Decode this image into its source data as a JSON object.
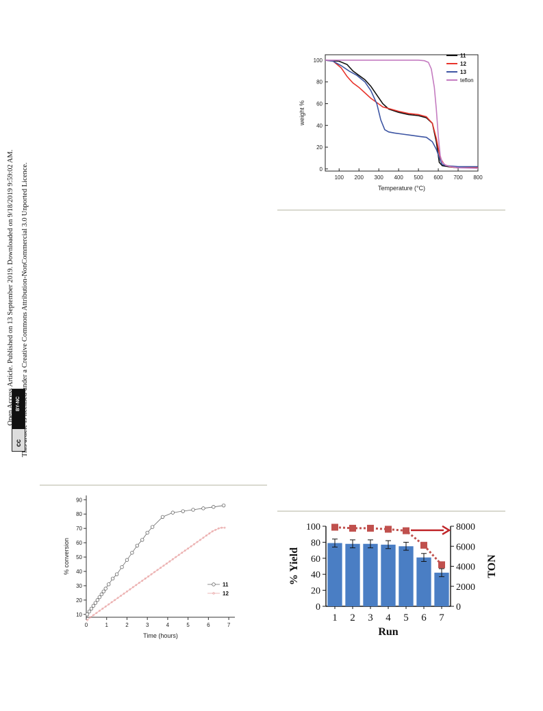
{
  "sidebar": {
    "line1": "Open Access Article. Published on 13 September 2019. Downloaded on 9/18/2019 9:59:02 AM.",
    "line2": "This article is licensed under a Creative Commons Attribution-NonCommercial 3.0 Unported Licence.",
    "cc_logo": "cc",
    "cc_label": "BY-NC"
  },
  "chart_data": [
    {
      "type": "line",
      "title": "",
      "xlabel": "Temperature (°C)",
      "ylabel": "weight  %",
      "xlim": [
        30,
        800
      ],
      "ylim": [
        -2,
        105
      ],
      "xticks": [
        100,
        200,
        300,
        400,
        500,
        600,
        700,
        800
      ],
      "yticks": [
        0,
        20,
        40,
        60,
        80,
        100
      ],
      "legend_position": "top-right",
      "grid": false,
      "series": [
        {
          "name": "11",
          "color": "#111111",
          "x": [
            30,
            100,
            140,
            170,
            200,
            230,
            260,
            290,
            320,
            350,
            400,
            450,
            500,
            540,
            570,
            590,
            605,
            620,
            650,
            700,
            800
          ],
          "y": [
            100,
            99,
            96,
            90,
            86,
            82,
            76,
            68,
            60,
            55,
            52,
            50,
            49,
            47,
            42,
            25,
            6,
            3,
            2,
            1,
            1
          ]
        },
        {
          "name": "12",
          "color": "#e8332b",
          "x": [
            30,
            70,
            110,
            140,
            170,
            200,
            230,
            260,
            290,
            320,
            360,
            400,
            450,
            500,
            540,
            570,
            590,
            610,
            630,
            660,
            700,
            800
          ],
          "y": [
            100,
            99,
            93,
            85,
            79,
            75,
            70,
            65,
            61,
            57,
            55,
            53,
            51,
            50,
            48,
            42,
            28,
            10,
            4,
            2,
            1,
            1
          ]
        },
        {
          "name": "13",
          "color": "#3d55a3",
          "x": [
            30,
            70,
            110,
            150,
            190,
            230,
            260,
            290,
            310,
            330,
            350,
            380,
            420,
            460,
            500,
            540,
            570,
            590,
            610,
            620,
            640,
            700,
            800
          ],
          "y": [
            100,
            99,
            95,
            90,
            86,
            80,
            72,
            60,
            45,
            36,
            34,
            33,
            32,
            31,
            30,
            29,
            25,
            18,
            8,
            4,
            3,
            2,
            2
          ]
        },
        {
          "name": "teflon",
          "color": "#c47bc0",
          "x": [
            30,
            200,
            400,
            500,
            530,
            550,
            565,
            580,
            590,
            600,
            610,
            620,
            640,
            700,
            800
          ],
          "y": [
            100,
            100,
            100,
            100,
            99.5,
            98,
            92,
            75,
            55,
            30,
            12,
            6,
            3,
            1,
            0.5
          ]
        }
      ]
    },
    {
      "type": "scatter",
      "title": "",
      "xlabel": "Time (hours)",
      "ylabel": "% conversion",
      "xlim": [
        0,
        7.3
      ],
      "ylim": [
        8,
        93
      ],
      "xticks": [
        0,
        1,
        2,
        3,
        4,
        5,
        6,
        7
      ],
      "yticks": [
        10,
        20,
        30,
        40,
        50,
        60,
        70,
        80,
        90
      ],
      "legend_position": "bottom-right",
      "grid": false,
      "series": [
        {
          "name": "11",
          "color": "#666666",
          "marker": "circle",
          "x": [
            0.05,
            0.15,
            0.25,
            0.35,
            0.45,
            0.55,
            0.65,
            0.75,
            0.85,
            0.95,
            1.1,
            1.3,
            1.5,
            1.75,
            2.0,
            2.25,
            2.5,
            2.75,
            3.0,
            3.25,
            3.75,
            4.25,
            4.75,
            5.25,
            5.75,
            6.25,
            6.75
          ],
          "y": [
            10,
            12,
            14,
            16,
            18,
            20,
            22,
            24,
            26,
            28,
            31,
            35,
            38,
            43,
            48,
            53,
            58,
            62,
            67,
            71,
            78,
            81,
            82,
            83,
            84,
            85,
            86
          ]
        },
        {
          "name": "12",
          "color": "#e8a0a0",
          "marker": "dot",
          "x": [
            0.05,
            0.2,
            0.35,
            0.5,
            0.65,
            0.8,
            0.95,
            1.1,
            1.25,
            1.4,
            1.55,
            1.7,
            1.85,
            2.0,
            2.15,
            2.3,
            2.45,
            2.6,
            2.75,
            2.9,
            3.05,
            3.2,
            3.35,
            3.5,
            3.65,
            3.8,
            3.95,
            4.1,
            4.25,
            4.4,
            4.55,
            4.7,
            4.85,
            5.0,
            5.15,
            5.3,
            5.45,
            5.6,
            5.75,
            5.9,
            6.05,
            6.2,
            6.35,
            6.5,
            6.65,
            6.8
          ],
          "y": [
            6,
            8,
            9.5,
            11,
            12.5,
            14,
            15.5,
            17,
            18.5,
            20,
            21.5,
            23,
            24.5,
            26,
            27.5,
            29,
            30.5,
            32,
            33.5,
            35,
            36.5,
            38,
            39.5,
            41,
            42.5,
            44,
            45.5,
            47,
            48.5,
            50,
            51.5,
            53,
            54.5,
            56,
            57.5,
            59,
            60.5,
            62,
            63.5,
            65,
            66.5,
            68,
            69,
            70,
            70.5,
            70.5
          ]
        }
      ]
    },
    {
      "type": "bar",
      "title": "",
      "xlabel": "Run",
      "ylabel": "% Yield",
      "y2label": "TON",
      "categories": [
        "1",
        "2",
        "3",
        "4",
        "5",
        "6",
        "7"
      ],
      "ylim": [
        0,
        100
      ],
      "y2lim": [
        0,
        8000
      ],
      "yticks": [
        0,
        20,
        40,
        60,
        80,
        100
      ],
      "y2ticks": [
        0,
        2000,
        4000,
        6000,
        8000
      ],
      "grid": false,
      "series": [
        {
          "name": "% Yield",
          "axis": "left",
          "type": "bar",
          "color": "#4a7ec4",
          "values": [
            79,
            78,
            78,
            77,
            75,
            61,
            42
          ],
          "errors": [
            5,
            5,
            5,
            5,
            5,
            5,
            5
          ]
        },
        {
          "name": "TON",
          "axis": "right",
          "type": "line",
          "color": "#c0504d",
          "values": [
            7900,
            7800,
            7800,
            7700,
            7550,
            6100,
            4150
          ]
        }
      ],
      "annotation": "arrow-right"
    }
  ]
}
